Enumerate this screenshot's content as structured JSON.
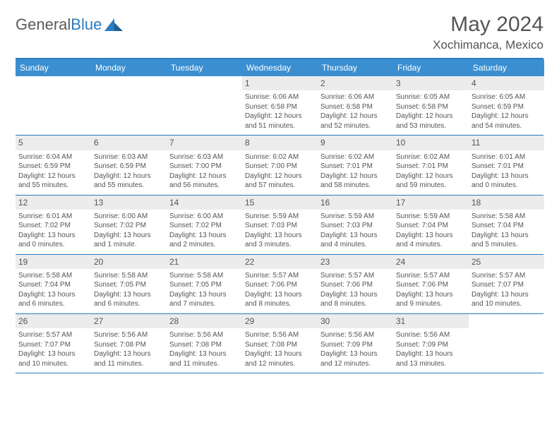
{
  "brand": {
    "part1": "General",
    "part2": "Blue"
  },
  "title": "May 2024",
  "location": "Xochimanca, Mexico",
  "colors": {
    "header_bg": "#3b8fd1",
    "accent": "#2b7bbf",
    "daynum_bg": "#ececec",
    "text": "#555555",
    "page_bg": "#ffffff"
  },
  "day_headers": [
    "Sunday",
    "Monday",
    "Tuesday",
    "Wednesday",
    "Thursday",
    "Friday",
    "Saturday"
  ],
  "weeks": [
    [
      {
        "n": "",
        "sr": "",
        "ss": "",
        "dl": ""
      },
      {
        "n": "",
        "sr": "",
        "ss": "",
        "dl": ""
      },
      {
        "n": "",
        "sr": "",
        "ss": "",
        "dl": ""
      },
      {
        "n": "1",
        "sr": "Sunrise: 6:06 AM",
        "ss": "Sunset: 6:58 PM",
        "dl": "Daylight: 12 hours and 51 minutes."
      },
      {
        "n": "2",
        "sr": "Sunrise: 6:06 AM",
        "ss": "Sunset: 6:58 PM",
        "dl": "Daylight: 12 hours and 52 minutes."
      },
      {
        "n": "3",
        "sr": "Sunrise: 6:05 AM",
        "ss": "Sunset: 6:58 PM",
        "dl": "Daylight: 12 hours and 53 minutes."
      },
      {
        "n": "4",
        "sr": "Sunrise: 6:05 AM",
        "ss": "Sunset: 6:59 PM",
        "dl": "Daylight: 12 hours and 54 minutes."
      }
    ],
    [
      {
        "n": "5",
        "sr": "Sunrise: 6:04 AM",
        "ss": "Sunset: 6:59 PM",
        "dl": "Daylight: 12 hours and 55 minutes."
      },
      {
        "n": "6",
        "sr": "Sunrise: 6:03 AM",
        "ss": "Sunset: 6:59 PM",
        "dl": "Daylight: 12 hours and 55 minutes."
      },
      {
        "n": "7",
        "sr": "Sunrise: 6:03 AM",
        "ss": "Sunset: 7:00 PM",
        "dl": "Daylight: 12 hours and 56 minutes."
      },
      {
        "n": "8",
        "sr": "Sunrise: 6:02 AM",
        "ss": "Sunset: 7:00 PM",
        "dl": "Daylight: 12 hours and 57 minutes."
      },
      {
        "n": "9",
        "sr": "Sunrise: 6:02 AM",
        "ss": "Sunset: 7:01 PM",
        "dl": "Daylight: 12 hours and 58 minutes."
      },
      {
        "n": "10",
        "sr": "Sunrise: 6:02 AM",
        "ss": "Sunset: 7:01 PM",
        "dl": "Daylight: 12 hours and 59 minutes."
      },
      {
        "n": "11",
        "sr": "Sunrise: 6:01 AM",
        "ss": "Sunset: 7:01 PM",
        "dl": "Daylight: 13 hours and 0 minutes."
      }
    ],
    [
      {
        "n": "12",
        "sr": "Sunrise: 6:01 AM",
        "ss": "Sunset: 7:02 PM",
        "dl": "Daylight: 13 hours and 0 minutes."
      },
      {
        "n": "13",
        "sr": "Sunrise: 6:00 AM",
        "ss": "Sunset: 7:02 PM",
        "dl": "Daylight: 13 hours and 1 minute."
      },
      {
        "n": "14",
        "sr": "Sunrise: 6:00 AM",
        "ss": "Sunset: 7:02 PM",
        "dl": "Daylight: 13 hours and 2 minutes."
      },
      {
        "n": "15",
        "sr": "Sunrise: 5:59 AM",
        "ss": "Sunset: 7:03 PM",
        "dl": "Daylight: 13 hours and 3 minutes."
      },
      {
        "n": "16",
        "sr": "Sunrise: 5:59 AM",
        "ss": "Sunset: 7:03 PM",
        "dl": "Daylight: 13 hours and 4 minutes."
      },
      {
        "n": "17",
        "sr": "Sunrise: 5:59 AM",
        "ss": "Sunset: 7:04 PM",
        "dl": "Daylight: 13 hours and 4 minutes."
      },
      {
        "n": "18",
        "sr": "Sunrise: 5:58 AM",
        "ss": "Sunset: 7:04 PM",
        "dl": "Daylight: 13 hours and 5 minutes."
      }
    ],
    [
      {
        "n": "19",
        "sr": "Sunrise: 5:58 AM",
        "ss": "Sunset: 7:04 PM",
        "dl": "Daylight: 13 hours and 6 minutes."
      },
      {
        "n": "20",
        "sr": "Sunrise: 5:58 AM",
        "ss": "Sunset: 7:05 PM",
        "dl": "Daylight: 13 hours and 6 minutes."
      },
      {
        "n": "21",
        "sr": "Sunrise: 5:58 AM",
        "ss": "Sunset: 7:05 PM",
        "dl": "Daylight: 13 hours and 7 minutes."
      },
      {
        "n": "22",
        "sr": "Sunrise: 5:57 AM",
        "ss": "Sunset: 7:06 PM",
        "dl": "Daylight: 13 hours and 8 minutes."
      },
      {
        "n": "23",
        "sr": "Sunrise: 5:57 AM",
        "ss": "Sunset: 7:06 PM",
        "dl": "Daylight: 13 hours and 8 minutes."
      },
      {
        "n": "24",
        "sr": "Sunrise: 5:57 AM",
        "ss": "Sunset: 7:06 PM",
        "dl": "Daylight: 13 hours and 9 minutes."
      },
      {
        "n": "25",
        "sr": "Sunrise: 5:57 AM",
        "ss": "Sunset: 7:07 PM",
        "dl": "Daylight: 13 hours and 10 minutes."
      }
    ],
    [
      {
        "n": "26",
        "sr": "Sunrise: 5:57 AM",
        "ss": "Sunset: 7:07 PM",
        "dl": "Daylight: 13 hours and 10 minutes."
      },
      {
        "n": "27",
        "sr": "Sunrise: 5:56 AM",
        "ss": "Sunset: 7:08 PM",
        "dl": "Daylight: 13 hours and 11 minutes."
      },
      {
        "n": "28",
        "sr": "Sunrise: 5:56 AM",
        "ss": "Sunset: 7:08 PM",
        "dl": "Daylight: 13 hours and 11 minutes."
      },
      {
        "n": "29",
        "sr": "Sunrise: 5:56 AM",
        "ss": "Sunset: 7:08 PM",
        "dl": "Daylight: 13 hours and 12 minutes."
      },
      {
        "n": "30",
        "sr": "Sunrise: 5:56 AM",
        "ss": "Sunset: 7:09 PM",
        "dl": "Daylight: 13 hours and 12 minutes."
      },
      {
        "n": "31",
        "sr": "Sunrise: 5:56 AM",
        "ss": "Sunset: 7:09 PM",
        "dl": "Daylight: 13 hours and 13 minutes."
      },
      {
        "n": "",
        "sr": "",
        "ss": "",
        "dl": ""
      }
    ]
  ]
}
